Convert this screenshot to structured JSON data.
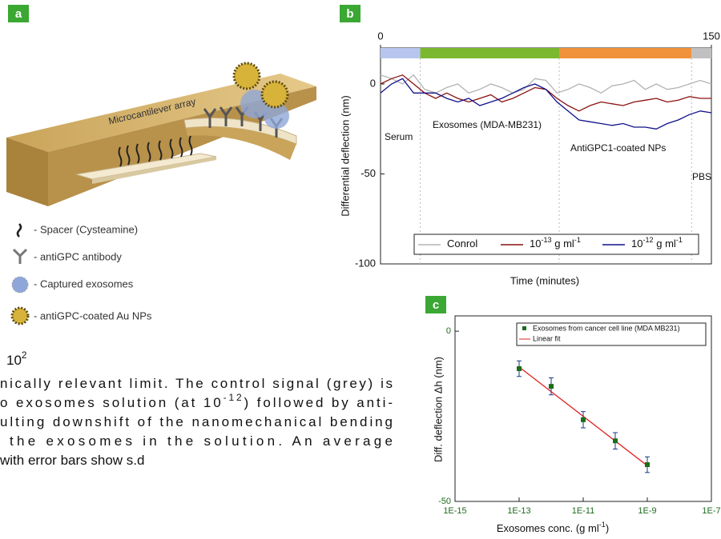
{
  "panel_labels": [
    "a",
    "b",
    "c"
  ],
  "panel_a": {
    "structure_label": "Microcantilever array",
    "legend": [
      "- Spacer (Cysteamine)",
      "- antiGPC antibody",
      "- Captured exosomes",
      "- antiGPC-coated Au NPs"
    ]
  },
  "body_text": [
    [
      "10",
      "2"
    ],
    [
      "nically relevant limit. The control signal (grey) is"
    ],
    [
      "o exosomes solution (at 10",
      "-12",
      ") followed by anti-"
    ],
    [
      "ulting downshift of the nanomechanical bending"
    ],
    [
      "the exosomes in the solution. An average"
    ],
    [
      "with error bars show s.d"
    ]
  ],
  "chart_data": [
    {
      "type": "line",
      "x_label": "Time (minutes)",
      "y_label": "Differential deflection (nm)",
      "xlim": [
        0,
        150
      ],
      "xticks": [
        0,
        150
      ],
      "ylim": [
        -100,
        20
      ],
      "yticks": [
        0,
        -50,
        -100
      ],
      "phases": [
        {
          "label": "Serum",
          "start": 0,
          "end": 18,
          "color": "#b7c6ee"
        },
        {
          "label": "Exosomes (MDA-MB231)",
          "start": 18,
          "end": 81,
          "color": "#7cb82f"
        },
        {
          "label": "AntiGPC1-coated NPs",
          "start": 81,
          "end": 141,
          "color": "#f0923a"
        },
        {
          "label": "PBS",
          "start": 141,
          "end": 150,
          "color": "#c0c0c0"
        }
      ],
      "x": [
        0,
        5,
        10,
        15,
        20,
        25,
        30,
        35,
        40,
        45,
        50,
        55,
        60,
        65,
        70,
        75,
        80,
        85,
        90,
        95,
        100,
        105,
        110,
        115,
        120,
        125,
        130,
        135,
        140,
        145,
        150
      ],
      "series": [
        {
          "name": [
            "Conrol"
          ],
          "color": "#b3b3b3",
          "values": [
            5,
            3,
            0,
            5,
            -3,
            -5,
            -2,
            0,
            -5,
            -3,
            0,
            -2,
            -5,
            -3,
            3,
            2,
            -5,
            -3,
            0,
            -2,
            -5,
            -1,
            0,
            2,
            -3,
            0,
            -3,
            -2,
            0,
            2,
            0
          ]
        },
        {
          "name": [
            "10",
            "-13",
            " g ml",
            "-1"
          ],
          "color": "#8b1010",
          "values": [
            0,
            3,
            5,
            0,
            -5,
            -8,
            -5,
            -8,
            -10,
            -8,
            -6,
            -10,
            -8,
            -5,
            -2,
            -3,
            -8,
            -12,
            -15,
            -12,
            -10,
            -11,
            -12,
            -10,
            -9,
            -8,
            -10,
            -9,
            -7,
            -8,
            -8
          ]
        },
        {
          "name": [
            "10",
            "-12",
            " g ml",
            "-1"
          ],
          "color": "#10108b",
          "values": [
            -5,
            0,
            3,
            -5,
            -5,
            -5,
            -8,
            -10,
            -8,
            -12,
            -10,
            -8,
            -5,
            -2,
            0,
            -3,
            -10,
            -15,
            -20,
            -21,
            -22,
            -23,
            -22,
            -24,
            -24,
            -25,
            -22,
            -20,
            -17,
            -15,
            -16
          ]
        }
      ]
    },
    {
      "type": "scatter",
      "log_x": true,
      "x_label": [
        "Exosomes conc. (g ml",
        "-1",
        ")"
      ],
      "y_label": "Diff. deflection Δh (nm)",
      "xlim": [
        1e-15,
        1e-07
      ],
      "xticks": [
        {
          "value": 1e-15,
          "label": "1E-15"
        },
        {
          "value": 1e-13,
          "label": "1E-13"
        },
        {
          "value": 1e-11,
          "label": "1E-11"
        },
        {
          "value": 1e-09,
          "label": "1E-9"
        },
        {
          "value": 1e-07,
          "label": "1E-7"
        }
      ],
      "ylim": [
        -50,
        4.5
      ],
      "yticks": [
        0,
        -50
      ],
      "series": [
        {
          "name": "Exosomes from cancer cell line (MDA MB231)",
          "color": "#1a6e1a",
          "x": [
            1e-13,
            1e-12,
            1e-11,
            1e-10,
            1e-09
          ],
          "values": [
            -11,
            -16.2,
            -26,
            -32.2,
            -39.2
          ],
          "errors": [
            2.3,
            2.5,
            2.4,
            2.4,
            2.3
          ]
        }
      ],
      "fit": {
        "name": "Linear fit",
        "color": "#e02020",
        "x": [
          1e-13,
          1e-09
        ],
        "values": [
          -10.5,
          -39.5
        ]
      }
    }
  ]
}
